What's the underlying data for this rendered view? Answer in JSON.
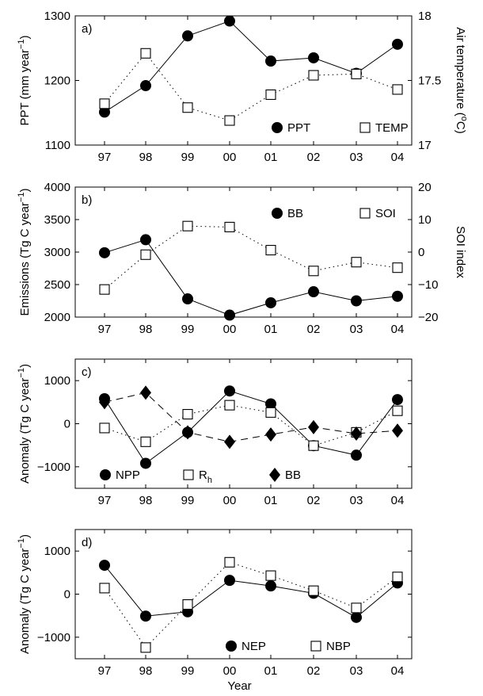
{
  "chart_data": [
    {
      "panel": "a)",
      "type": "line",
      "categories": [
        "97",
        "98",
        "99",
        "00",
        "01",
        "02",
        "03",
        "04"
      ],
      "xlabel": "",
      "ylabel": "PPT (mm year$^{-1}$)",
      "ylabel_right": "Air temperature ($^{o}$C)",
      "ylim": [
        1100,
        1300
      ],
      "yticks": [
        1100,
        1200,
        1300
      ],
      "ylim_right": [
        17,
        18
      ],
      "yticks_right": [
        "17",
        "17.5",
        "18"
      ],
      "legend": [
        "PPT",
        "TEMP"
      ],
      "series": [
        {
          "name": "PPT",
          "axis": "left",
          "marker": "filled-circle",
          "line": "solid",
          "values": [
            1151,
            1192,
            1269,
            1292,
            1230,
            1235,
            1211,
            1256
          ]
        },
        {
          "name": "TEMP",
          "axis": "right",
          "marker": "open-square",
          "line": "dotted",
          "values": [
            17.32,
            17.71,
            17.29,
            17.19,
            17.39,
            17.54,
            17.55,
            17.43
          ]
        }
      ]
    },
    {
      "panel": "b)",
      "type": "line",
      "categories": [
        "97",
        "98",
        "99",
        "00",
        "01",
        "02",
        "03",
        "04"
      ],
      "xlabel": "",
      "ylabel": "Emissions (Tg C year$^{-1}$)",
      "ylabel_right": "SOI index",
      "ylim": [
        2000,
        4000
      ],
      "yticks": [
        2000,
        2500,
        3000,
        3500,
        4000
      ],
      "ylim_right": [
        -20,
        20
      ],
      "yticks_right": [
        "-20",
        "-10",
        "0",
        "10",
        "20"
      ],
      "legend": [
        "BB",
        "SOI"
      ],
      "series": [
        {
          "name": "BB",
          "axis": "left",
          "marker": "filled-circle",
          "line": "solid",
          "values": [
            2990,
            3190,
            2280,
            2030,
            2220,
            2390,
            2250,
            2320
          ]
        },
        {
          "name": "SOI",
          "axis": "right",
          "marker": "open-square",
          "line": "dotted",
          "values": [
            -11.5,
            -0.8,
            8.0,
            7.7,
            0.6,
            -5.8,
            -3.1,
            -4.8
          ]
        }
      ]
    },
    {
      "panel": "c)",
      "type": "line",
      "categories": [
        "97",
        "98",
        "99",
        "00",
        "01",
        "02",
        "03",
        "04"
      ],
      "xlabel": "",
      "ylabel": "Anomaly (Tg C year$^{-1}$)",
      "ylim": [
        -1500,
        1500
      ],
      "yticks": [
        "−1000",
        "0",
        "1000"
      ],
      "ytick_values": [
        -1000,
        0,
        1000
      ],
      "legend": [
        "NPP",
        "R_h",
        "BB"
      ],
      "series": [
        {
          "name": "NPP",
          "marker": "filled-circle",
          "line": "solid",
          "values": [
            580,
            -920,
            -200,
            760,
            460,
            -510,
            -730,
            560
          ]
        },
        {
          "name": "R_h",
          "marker": "open-square",
          "line": "dotted",
          "values": [
            -100,
            -420,
            220,
            430,
            260,
            -510,
            -200,
            300
          ]
        },
        {
          "name": "BB",
          "marker": "filled-diamond",
          "line": "dashed",
          "values": [
            500,
            720,
            -200,
            -420,
            -250,
            -80,
            -230,
            -160
          ]
        }
      ]
    },
    {
      "panel": "d)",
      "type": "line",
      "categories": [
        "97",
        "98",
        "99",
        "00",
        "01",
        "02",
        "03",
        "04"
      ],
      "xlabel": "Year",
      "ylabel": "Anomaly (Tg C year$^{-1}$)",
      "ylim": [
        -1500,
        1500
      ],
      "yticks": [
        "−1000",
        "0",
        "1000"
      ],
      "ytick_values": [
        -1000,
        0,
        1000
      ],
      "legend": [
        "NEP",
        "NBP"
      ],
      "series": [
        {
          "name": "NEP",
          "marker": "filled-circle",
          "line": "solid",
          "values": [
            670,
            -510,
            -410,
            320,
            190,
            20,
            -540,
            260
          ]
        },
        {
          "name": "NBP",
          "marker": "open-square",
          "line": "dotted",
          "values": [
            140,
            -1240,
            -240,
            740,
            430,
            80,
            -320,
            400
          ]
        }
      ]
    }
  ]
}
